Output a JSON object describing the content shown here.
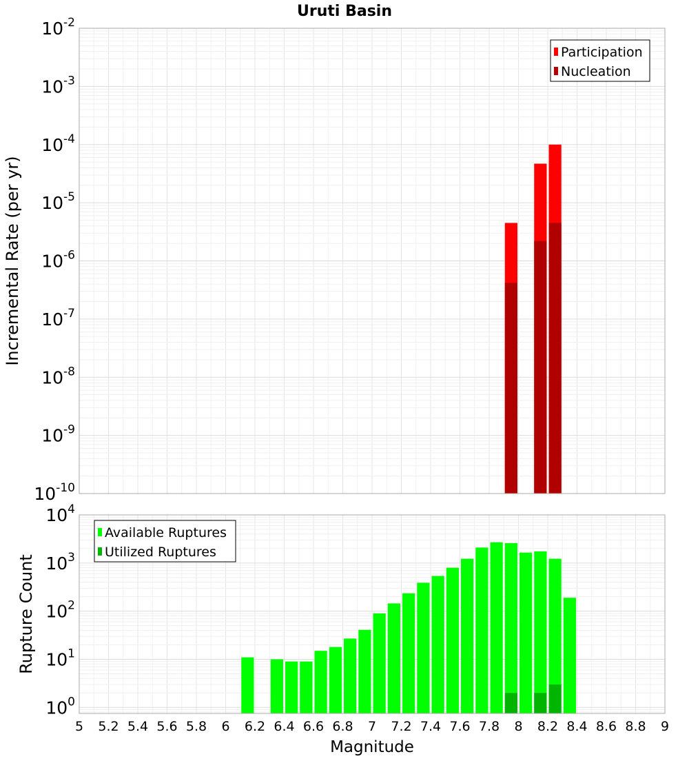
{
  "chart_data": [
    {
      "type": "bar",
      "title": "Uruti Basin",
      "ylabel": "Incremental Rate (per yr)",
      "xlabel": "",
      "xlim": [
        5,
        9
      ],
      "yscale": "log",
      "ylim": [
        1e-10,
        0.01
      ],
      "y_tick_exponents": [
        "-2",
        "-3",
        "-4",
        "-5",
        "-6",
        "-7",
        "-8",
        "-9",
        "-10"
      ],
      "y_tick_base": "10",
      "grid": true,
      "legend_position": "top-right",
      "series": [
        {
          "name": "Participation",
          "color": "#ff0000",
          "points": [
            {
              "x": 7.95,
              "y": 4.5e-06
            },
            {
              "x": 8.15,
              "y": 4.7e-05
            },
            {
              "x": 8.25,
              "y": 0.0001
            }
          ]
        },
        {
          "name": "Nucleation",
          "color": "#b00000",
          "points": [
            {
              "x": 7.95,
              "y": 4.2e-07
            },
            {
              "x": 8.15,
              "y": 2.2e-06
            },
            {
              "x": 8.25,
              "y": 4.5e-06
            }
          ]
        }
      ]
    },
    {
      "type": "bar",
      "title": "",
      "ylabel": "Rupture Count",
      "xlabel": "Magnitude",
      "xlim": [
        5,
        9
      ],
      "yscale": "log",
      "ylim": [
        0.75,
        10000
      ],
      "y_tick_exponents": [
        "4",
        "3",
        "2",
        "1",
        "0"
      ],
      "y_tick_base": "10",
      "x_ticks": [
        "5",
        "5.2",
        "5.4",
        "5.6",
        "5.8",
        "6",
        "6.2",
        "6.4",
        "6.6",
        "6.8",
        "7",
        "7.2",
        "7.4",
        "7.6",
        "7.8",
        "8",
        "8.2",
        "8.4",
        "8.6",
        "8.8",
        "9"
      ],
      "grid": true,
      "legend_position": "top-left",
      "series": [
        {
          "name": "Available Ruptures",
          "color": "#00ff00",
          "points": [
            {
              "x": 6.15,
              "y": 11
            },
            {
              "x": 6.35,
              "y": 10
            },
            {
              "x": 6.45,
              "y": 9
            },
            {
              "x": 6.55,
              "y": 9
            },
            {
              "x": 6.65,
              "y": 15
            },
            {
              "x": 6.75,
              "y": 18
            },
            {
              "x": 6.85,
              "y": 27
            },
            {
              "x": 6.95,
              "y": 41
            },
            {
              "x": 7.05,
              "y": 90
            },
            {
              "x": 7.15,
              "y": 145
            },
            {
              "x": 7.25,
              "y": 235
            },
            {
              "x": 7.35,
              "y": 390
            },
            {
              "x": 7.45,
              "y": 540
            },
            {
              "x": 7.55,
              "y": 800
            },
            {
              "x": 7.65,
              "y": 1230
            },
            {
              "x": 7.75,
              "y": 2100
            },
            {
              "x": 7.85,
              "y": 2700
            },
            {
              "x": 7.95,
              "y": 2600
            },
            {
              "x": 8.05,
              "y": 1650
            },
            {
              "x": 8.15,
              "y": 1750
            },
            {
              "x": 8.25,
              "y": 1230
            },
            {
              "x": 8.35,
              "y": 190
            }
          ]
        },
        {
          "name": "Utilized Ruptures",
          "color": "#00b400",
          "points": [
            {
              "x": 7.95,
              "y": 2
            },
            {
              "x": 8.15,
              "y": 2
            },
            {
              "x": 8.25,
              "y": 3
            }
          ]
        }
      ]
    }
  ]
}
